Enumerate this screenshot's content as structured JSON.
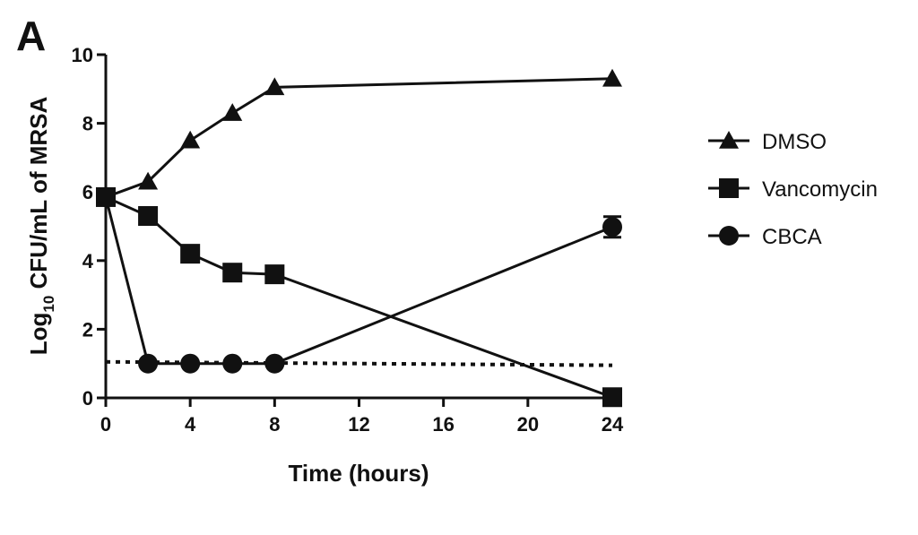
{
  "panel_label": "A",
  "chart_data": {
    "type": "line",
    "title": "",
    "xlabel": "Time (hours)",
    "ylabel_main": "Log",
    "ylabel_sub": "10",
    "ylabel_rest": " CFU/mL of MRSA",
    "xlim": [
      0,
      24
    ],
    "ylim": [
      0,
      10
    ],
    "x_ticks": [
      0,
      4,
      8,
      12,
      16,
      20,
      24
    ],
    "y_ticks": [
      0,
      2,
      4,
      6,
      8,
      10
    ],
    "legend_position": "right",
    "detection_limit": {
      "style": "dotted",
      "x": [
        0,
        24
      ],
      "y": [
        1.05,
        0.95
      ]
    },
    "series": [
      {
        "name": "DMSO",
        "marker": "triangle",
        "x": [
          0,
          2,
          4,
          6,
          8,
          24
        ],
        "y": [
          5.85,
          6.3,
          7.5,
          8.3,
          9.05,
          9.3
        ],
        "error": [
          0,
          0,
          0,
          0,
          0,
          0
        ]
      },
      {
        "name": "Vancomycin",
        "marker": "square",
        "x": [
          0,
          2,
          4,
          6,
          8,
          24
        ],
        "y": [
          5.85,
          5.3,
          4.2,
          3.65,
          3.6,
          0.02
        ],
        "error": [
          0,
          0,
          0,
          0,
          0,
          0
        ]
      },
      {
        "name": "CBCA",
        "marker": "circle",
        "x": [
          0,
          2,
          4,
          6,
          8,
          24
        ],
        "y": [
          5.85,
          1.0,
          1.0,
          1.0,
          1.0,
          4.98
        ],
        "error": [
          0,
          0,
          0,
          0,
          0,
          0.3
        ]
      }
    ]
  }
}
